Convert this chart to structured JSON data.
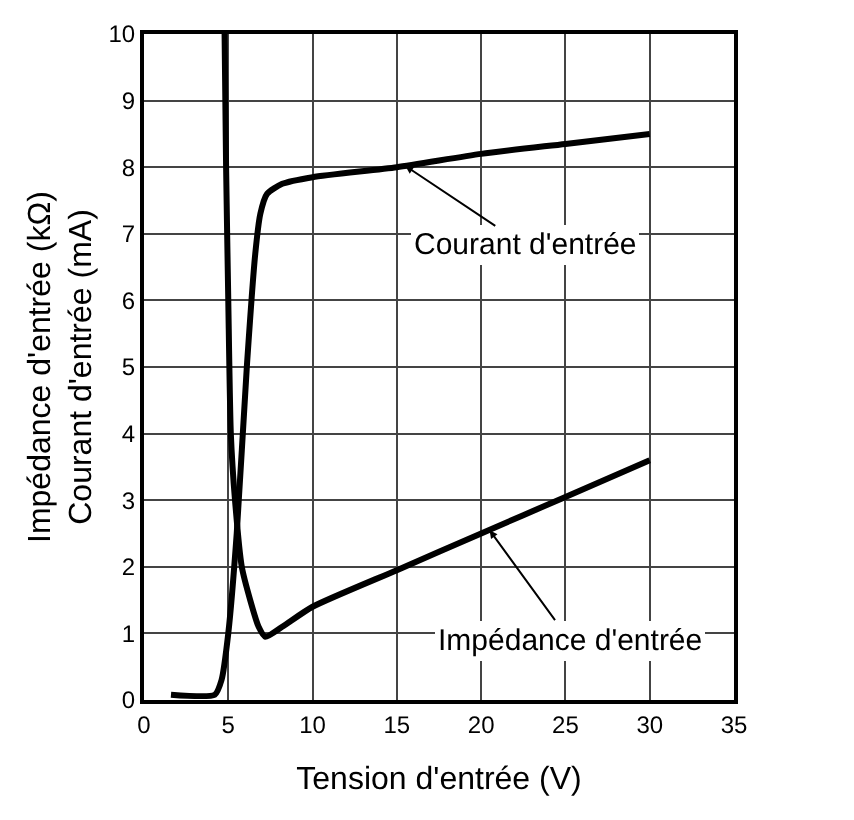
{
  "chart_data": {
    "type": "line",
    "xlabel": "Tension d'entrée (V)",
    "ylabel": "Impédance d'entrée (kΩ)\nCourant d'entrée (mA)",
    "series": [
      {
        "color": "#000000",
        "x": [
          1.6,
          4.2,
          4.6,
          5.0,
          5.5,
          6.1,
          6.6,
          6.9,
          7.3,
          8.2,
          10,
          15,
          20,
          25,
          30
        ],
        "values": [
          0.08,
          0.08,
          0.3,
          1.0,
          2.5,
          5.0,
          6.7,
          7.3,
          7.6,
          7.75,
          7.85,
          8.0,
          8.2,
          8.35,
          8.5
        ]
      },
      {
        "color": "#000000",
        "x": [
          4.78,
          4.87,
          5.0,
          5.15,
          5.4,
          5.8,
          6.3,
          6.8,
          7.2,
          8.2,
          10,
          15,
          20,
          25,
          30
        ],
        "values": [
          10,
          8,
          6,
          4,
          3,
          2,
          1.5,
          1.1,
          0.95,
          1.1,
          1.4,
          1.95,
          2.5,
          3.05,
          3.6
        ]
      }
    ],
    "annotations": [
      {
        "text": "Courant d'entrée",
        "x": 15.5,
        "y": 8.02
      },
      {
        "text": "Impédance d'entrée",
        "x": 20.5,
        "y": 2.55
      }
    ],
    "xlim": [
      0,
      35
    ],
    "xticks": [
      0,
      5,
      10,
      15,
      20,
      25,
      30,
      35
    ],
    "ylim": [
      0,
      10
    ],
    "yticks": [
      0,
      1,
      2,
      3,
      4,
      5,
      6,
      7,
      8,
      9,
      10
    ],
    "grid": true,
    "marker": "none",
    "line_style": "solid"
  }
}
